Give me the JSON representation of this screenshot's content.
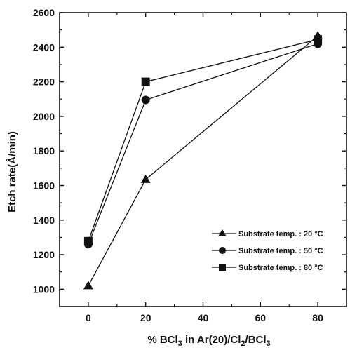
{
  "chart_data": {
    "type": "line",
    "xlabel": {
      "pre": "% BCl",
      "sub1": "3",
      "mid1": " in Ar(20)/Cl",
      "sub2": "2",
      "mid2": "/BCl",
      "sub3": "3"
    },
    "ylabel": "Etch rate(Å/min)",
    "xlim": [
      -10,
      90
    ],
    "ylim": [
      900,
      2600
    ],
    "xticks": [
      0,
      20,
      40,
      60,
      80
    ],
    "yticks": [
      1000,
      1200,
      1400,
      1600,
      1800,
      2000,
      2200,
      2400,
      2600
    ],
    "grid": false,
    "legend_position": "bottom-right",
    "series": [
      {
        "name": "Substrate temp. : 20 °C",
        "marker": "triangle",
        "x": [
          0,
          20,
          80
        ],
        "y": [
          1020,
          1635,
          2465
        ]
      },
      {
        "name": "Substrate temp. : 50 °C",
        "marker": "circle",
        "x": [
          0,
          20,
          80
        ],
        "y": [
          1260,
          2095,
          2420
        ]
      },
      {
        "name": "Substrate temp. : 80 °C",
        "marker": "square",
        "x": [
          0,
          20,
          80
        ],
        "y": [
          1278,
          2200,
          2445
        ]
      }
    ]
  }
}
